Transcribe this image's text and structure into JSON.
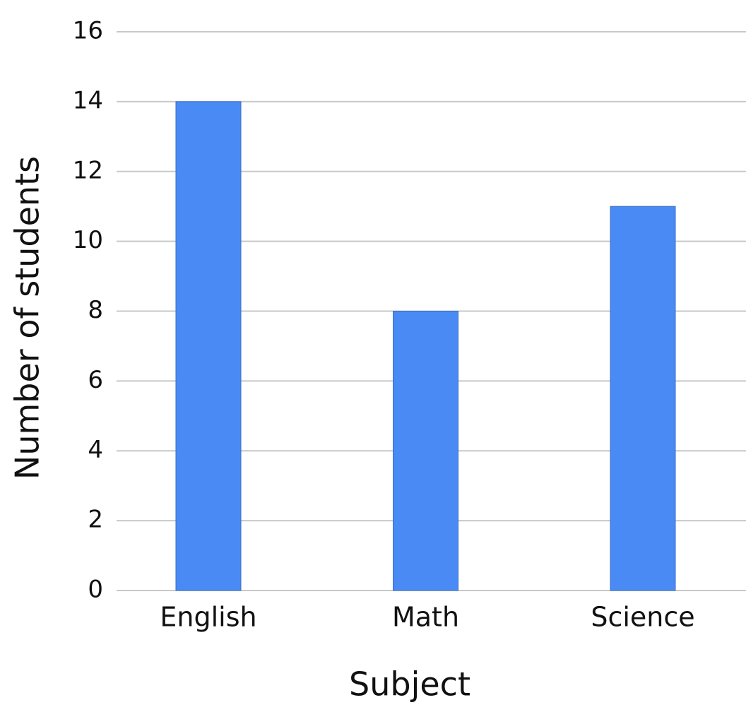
{
  "chart_data": {
    "type": "bar",
    "categories": [
      "English",
      "Math",
      "Science"
    ],
    "values": [
      14,
      8,
      11
    ],
    "color": "#4a8af4",
    "xlabel": "Subject",
    "ylabel": "Number of students",
    "ylim": [
      0,
      16
    ],
    "yticks": [
      0,
      2,
      4,
      6,
      8,
      10,
      12,
      14,
      16
    ],
    "grid": true
  }
}
